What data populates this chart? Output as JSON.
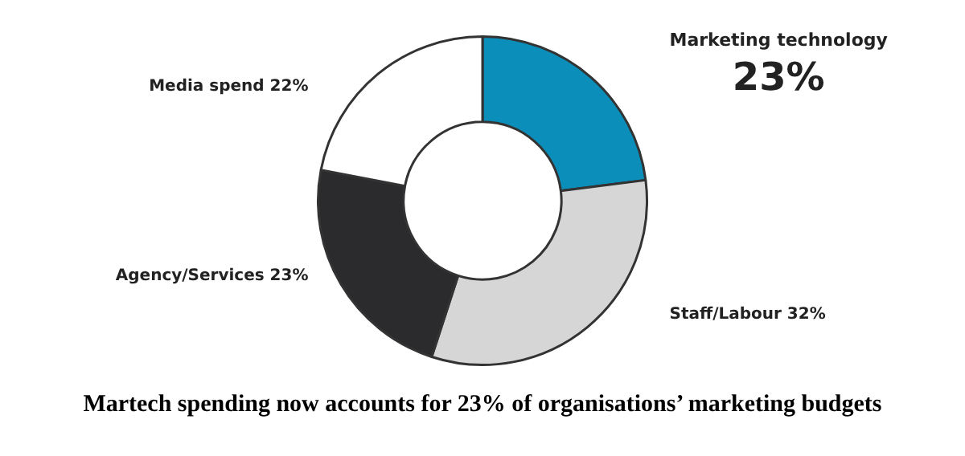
{
  "chart_data": {
    "type": "donut",
    "title": "Martech spending now accounts for 23% of organisations’ marketing budgets",
    "categories": [
      "Marketing technology",
      "Staff/Labour",
      "Agency/Services",
      "Media spend"
    ],
    "values": [
      23,
      32,
      23,
      22
    ],
    "value_labels": [
      "23%",
      "32%",
      "23%",
      "22%"
    ],
    "colors": [
      "#0b8fba",
      "#d6d6d6",
      "#2b2b2e",
      "#ffffff"
    ]
  }
}
